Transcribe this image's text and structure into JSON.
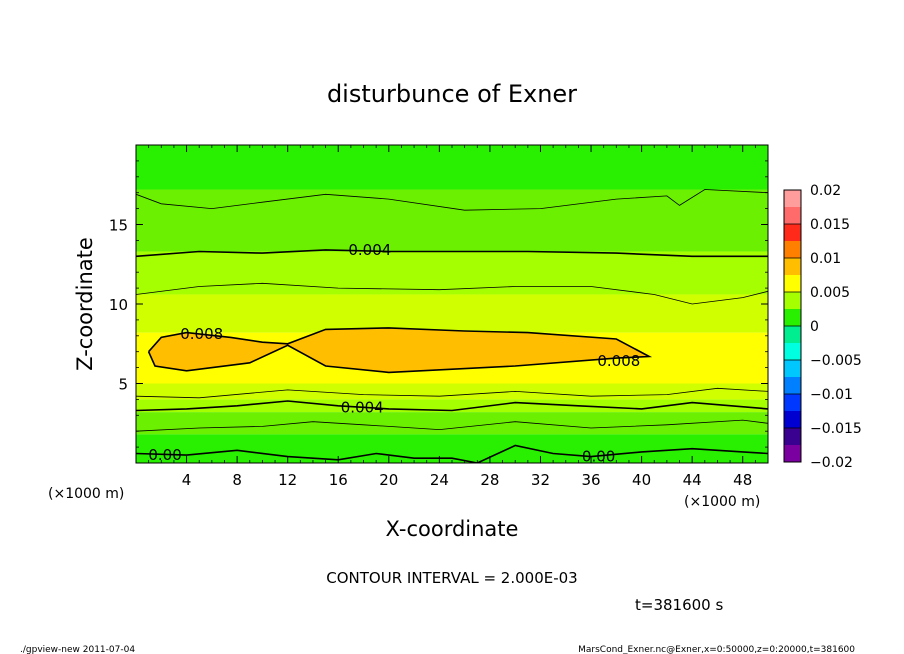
{
  "chart_data": {
    "type": "heatmap",
    "title": "disturbunce of Exner",
    "xlabel": "X-coordinate",
    "ylabel": "Z-coordinate",
    "x_unit": "(×1000 m)",
    "y_unit": "(×1000 m)",
    "xlim": [
      0,
      50
    ],
    "ylim": [
      0,
      20
    ],
    "x_ticks": [
      4,
      8,
      12,
      16,
      20,
      24,
      28,
      32,
      36,
      40,
      44,
      48
    ],
    "y_ticks": [
      5,
      10,
      15
    ],
    "contour_interval_text": "CONTOUR INTERVAL = 2.000E-03",
    "time_text": "t=381600 s",
    "colorbar": {
      "ticks": [
        "0.02",
        "0.015",
        "0.01",
        "0.005",
        "0",
        "−0.005",
        "−0.01",
        "−0.015",
        "−0.02"
      ],
      "range": [
        -0.02,
        0.02
      ],
      "levels": [
        {
          "lo": 0.0175,
          "hi": 0.02,
          "color": "#ff9d9d"
        },
        {
          "lo": 0.015,
          "hi": 0.0175,
          "color": "#ff6a6a"
        },
        {
          "lo": 0.0125,
          "hi": 0.015,
          "color": "#ff2a1a"
        },
        {
          "lo": 0.01,
          "hi": 0.0125,
          "color": "#ff8000"
        },
        {
          "lo": 0.0075,
          "hi": 0.01,
          "color": "#ffbf00"
        },
        {
          "lo": 0.005,
          "hi": 0.0075,
          "color": "#ffff00"
        },
        {
          "lo": 0.0025,
          "hi": 0.005,
          "color": "#a5ff00"
        },
        {
          "lo": 0.0,
          "hi": 0.0025,
          "color": "#28f000"
        },
        {
          "lo": -0.0025,
          "hi": 0.0,
          "color": "#00ee90"
        },
        {
          "lo": -0.005,
          "hi": -0.0025,
          "color": "#00ffe0"
        },
        {
          "lo": -0.0075,
          "hi": -0.005,
          "color": "#00c8ff"
        },
        {
          "lo": -0.01,
          "hi": -0.0075,
          "color": "#0080ff"
        },
        {
          "lo": -0.0125,
          "hi": -0.01,
          "color": "#0038ff"
        },
        {
          "lo": -0.015,
          "hi": -0.0125,
          "color": "#0000d0"
        },
        {
          "lo": -0.0175,
          "hi": -0.015,
          "color": "#3a0090"
        },
        {
          "lo": -0.02,
          "hi": -0.0175,
          "color": "#7a00a0"
        }
      ]
    },
    "bands": [
      {
        "z0": 19.7,
        "z1": 17.2,
        "color": "#28f000"
      },
      {
        "z0": 17.2,
        "z1": 13.3,
        "color": "#6af000"
      },
      {
        "z0": 13.3,
        "z1": 10.6,
        "color": "#a5ff00"
      },
      {
        "z0": 10.6,
        "z1": 8.2,
        "color": "#d0ff00"
      },
      {
        "z0": 8.2,
        "z1": 5.0,
        "color": "#ffff00"
      },
      {
        "z0": 5.0,
        "z1": 4.0,
        "color": "#d0ff00"
      },
      {
        "z0": 4.0,
        "z1": 3.2,
        "color": "#a5ff00"
      },
      {
        "z0": 3.2,
        "z1": 1.8,
        "color": "#6af000"
      },
      {
        "z0": 1.8,
        "z1": 0.0,
        "color": "#28f000"
      }
    ],
    "blob": {
      "color": "#ffbf00",
      "points": [
        [
          1.0,
          7.0
        ],
        [
          2.0,
          7.9
        ],
        [
          4.0,
          8.2
        ],
        [
          7.5,
          7.9
        ],
        [
          10.0,
          7.6
        ],
        [
          12.0,
          7.5
        ],
        [
          15.0,
          8.4
        ],
        [
          20.0,
          8.5
        ],
        [
          26.0,
          8.3
        ],
        [
          31.0,
          8.2
        ],
        [
          38.0,
          7.8
        ],
        [
          40.6,
          6.7
        ],
        [
          38.0,
          6.6
        ],
        [
          30.0,
          6.1
        ],
        [
          20.0,
          5.7
        ],
        [
          15.0,
          6.1
        ],
        [
          12.0,
          7.4
        ],
        [
          9.0,
          6.3
        ],
        [
          4.0,
          5.8
        ],
        [
          1.5,
          6.1
        ]
      ]
    },
    "contours": [
      {
        "label": "0.004",
        "thick": true,
        "label_x": 18.5,
        "points": [
          [
            0,
            13.0
          ],
          [
            5,
            13.3
          ],
          [
            10,
            13.2
          ],
          [
            15,
            13.4
          ],
          [
            20,
            13.3
          ],
          [
            26,
            13.3
          ],
          [
            31,
            13.3
          ],
          [
            38,
            13.2
          ],
          [
            44,
            13.0
          ],
          [
            50,
            13.0
          ]
        ]
      },
      {
        "label": "0.008",
        "thick": true,
        "label_x": 5.2,
        "points": [
          [
            1.0,
            7.0
          ],
          [
            2.0,
            7.9
          ],
          [
            4.0,
            8.2
          ],
          [
            7.5,
            7.9
          ],
          [
            10.0,
            7.6
          ],
          [
            12.0,
            7.5
          ],
          [
            15.0,
            8.4
          ],
          [
            20.0,
            8.5
          ],
          [
            26.0,
            8.3
          ],
          [
            31.0,
            8.2
          ],
          [
            38.0,
            7.8
          ],
          [
            40.6,
            6.7
          ],
          [
            38.0,
            6.6
          ],
          [
            30.0,
            6.1
          ],
          [
            20.0,
            5.7
          ],
          [
            15.0,
            6.1
          ],
          [
            12.0,
            7.4
          ],
          [
            9.0,
            6.3
          ],
          [
            4.0,
            5.8
          ],
          [
            1.5,
            6.1
          ],
          [
            1.0,
            7.0
          ]
        ]
      },
      {
        "label": "0.008",
        "thick": false,
        "label_x": 38.2,
        "points": []
      },
      {
        "label": "0.004",
        "thick": true,
        "label_x": 17.9,
        "points": [
          [
            0,
            3.3
          ],
          [
            4,
            3.4
          ],
          [
            8,
            3.6
          ],
          [
            12,
            3.9
          ],
          [
            16,
            3.6
          ],
          [
            20,
            3.4
          ],
          [
            25,
            3.3
          ],
          [
            30,
            3.8
          ],
          [
            35,
            3.6
          ],
          [
            40,
            3.4
          ],
          [
            44,
            3.8
          ],
          [
            50,
            3.4
          ]
        ]
      },
      {
        "label": "0.00",
        "thick": true,
        "label_x": 2.3,
        "points": [
          [
            0,
            0.6
          ],
          [
            4,
            0.5
          ],
          [
            8,
            0.8
          ],
          [
            12,
            0.4
          ],
          [
            16,
            0.2
          ],
          [
            19,
            0.6
          ],
          [
            22,
            0.3
          ],
          [
            25,
            0.3
          ],
          [
            27,
            0.0
          ],
          [
            30,
            1.1
          ],
          [
            33,
            0.6
          ],
          [
            36,
            0.4
          ],
          [
            40,
            0.7
          ],
          [
            44,
            0.9
          ],
          [
            48,
            0.7
          ],
          [
            50,
            0.6
          ]
        ]
      },
      {
        "label": "0.00",
        "thick": false,
        "label_x": 36.6,
        "points": []
      },
      {
        "label": "",
        "thick": false,
        "label_x": 0,
        "points": [
          [
            0,
            16.9
          ],
          [
            2,
            16.3
          ],
          [
            6,
            16.0
          ],
          [
            10,
            16.4
          ],
          [
            15,
            16.9
          ],
          [
            20,
            16.6
          ],
          [
            26,
            15.9
          ],
          [
            32,
            16.0
          ],
          [
            38,
            16.6
          ],
          [
            42,
            16.8
          ],
          [
            43,
            16.2
          ],
          [
            45,
            17.2
          ],
          [
            50,
            17.0
          ]
        ]
      },
      {
        "label": "",
        "thick": false,
        "label_x": 0,
        "points": [
          [
            0,
            10.6
          ],
          [
            5,
            11.1
          ],
          [
            10,
            11.3
          ],
          [
            16,
            11.0
          ],
          [
            24,
            10.9
          ],
          [
            30,
            11.1
          ],
          [
            36,
            11.1
          ],
          [
            41,
            10.6
          ],
          [
            44,
            10.0
          ],
          [
            48,
            10.4
          ],
          [
            50,
            10.8
          ]
        ]
      },
      {
        "label": "",
        "thick": false,
        "label_x": 0,
        "points": [
          [
            0,
            4.2
          ],
          [
            5,
            4.1
          ],
          [
            12,
            4.6
          ],
          [
            18,
            4.3
          ],
          [
            24,
            4.2
          ],
          [
            30,
            4.5
          ],
          [
            36,
            4.2
          ],
          [
            42,
            4.3
          ],
          [
            46,
            4.7
          ],
          [
            50,
            4.5
          ]
        ]
      },
      {
        "label": "",
        "thick": false,
        "label_x": 0,
        "points": [
          [
            0,
            2.0
          ],
          [
            5,
            2.2
          ],
          [
            10,
            2.3
          ],
          [
            14,
            2.6
          ],
          [
            18,
            2.4
          ],
          [
            24,
            2.1
          ],
          [
            30,
            2.6
          ],
          [
            36,
            2.2
          ],
          [
            42,
            2.4
          ],
          [
            48,
            2.7
          ],
          [
            50,
            2.5
          ]
        ]
      }
    ]
  },
  "footer": {
    "left": "./gpview-new   2011-07-04",
    "right": "MarsCond_Exner.nc@Exner,x=0:50000,z=0:20000,t=381600"
  }
}
